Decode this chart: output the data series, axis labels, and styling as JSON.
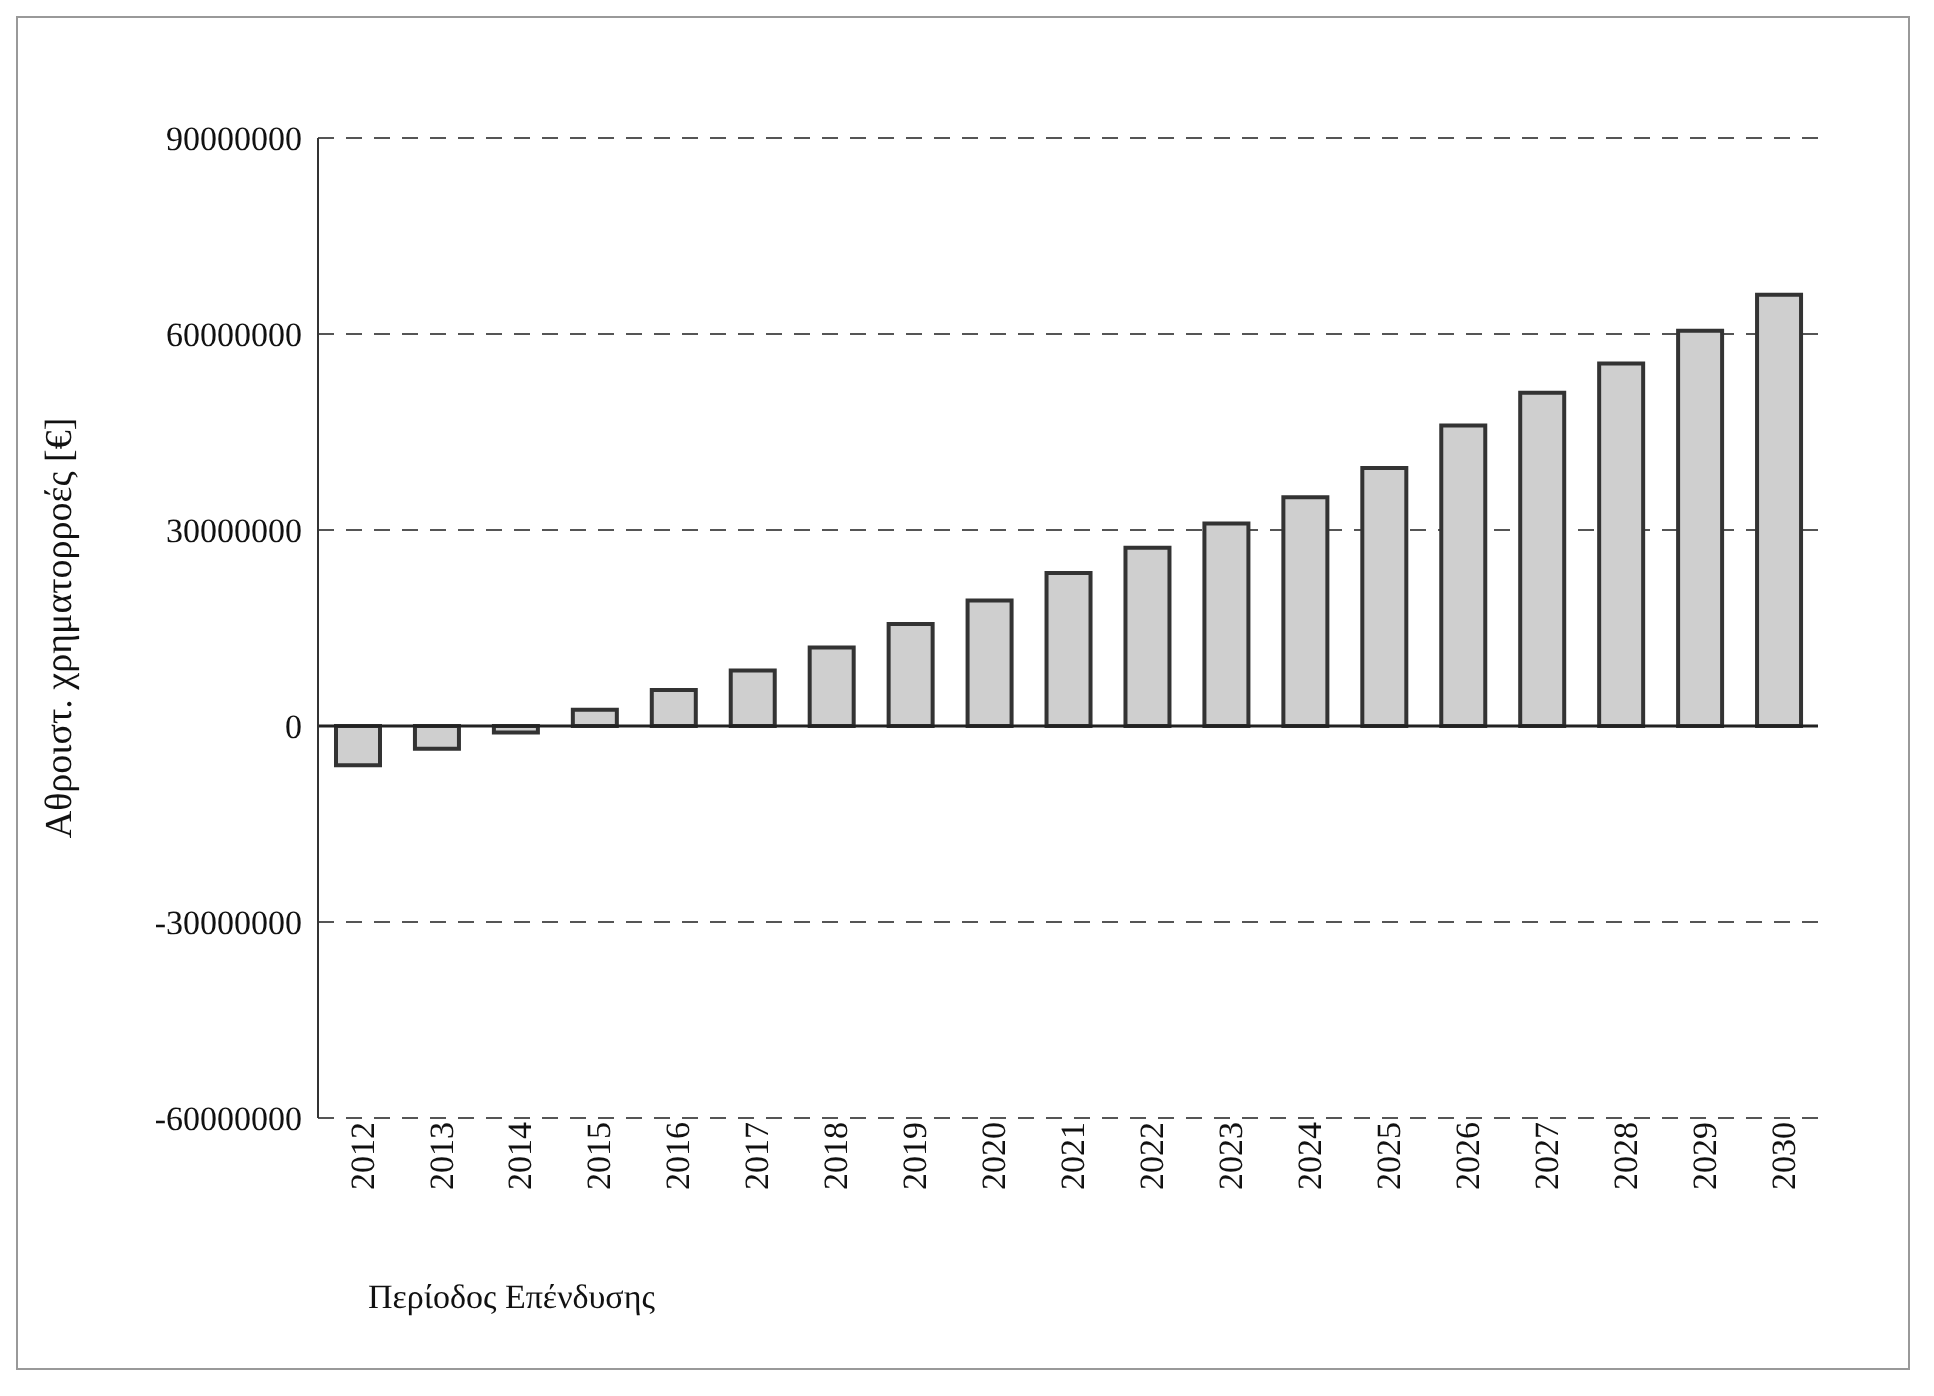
{
  "chart_data": {
    "type": "bar",
    "xlabel": "Περίοδος Επένδυσης",
    "ylabel": "Αθροιστ. χρηματορροές [€]",
    "categories": [
      "2012",
      "2013",
      "2014",
      "2015",
      "2016",
      "2017",
      "2018",
      "2019",
      "2020",
      "2021",
      "2022",
      "2023",
      "2024",
      "2025",
      "2026",
      "2027",
      "2028",
      "2029",
      "2030"
    ],
    "values": [
      -6000000,
      -3500000,
      -1000000,
      2500000,
      5500000,
      8500000,
      12000000,
      15600000,
      19200000,
      23400000,
      27300000,
      31000000,
      35000000,
      39500000,
      46000000,
      51000000,
      55500000,
      60500000,
      66000000
    ],
    "color": "#cfcfcf",
    "ylim": [
      -60000000,
      90000000
    ],
    "yticks": [
      -60000000,
      -30000000,
      0,
      30000000,
      60000000,
      90000000
    ],
    "grid": "y",
    "legend": false
  }
}
